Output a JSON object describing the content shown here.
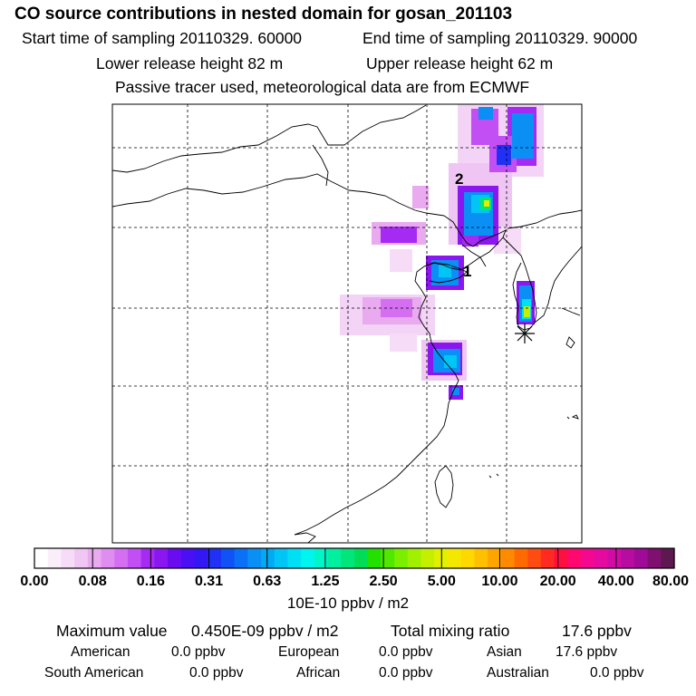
{
  "header": {
    "title": "CO  source contributions in nested domain for gosan_201103",
    "start_time": "Start time of sampling 20110329. 60000",
    "end_time": "End time of sampling 20110329. 90000",
    "lower_release": "Lower release height   82 m",
    "upper_release": "Upper release height   62 m",
    "tracer_info": "Passive tracer used, meteorological data are from ECMWF"
  },
  "chart_data": {
    "type": "heatmap",
    "title": "CO  source contributions in nested domain for gosan_201103",
    "grid": true,
    "grid_columns": 6,
    "grid_rows": 6,
    "markers": [
      {
        "label": "1",
        "kind": "number"
      },
      {
        "label": "2",
        "kind": "number"
      },
      {
        "label": "",
        "kind": "asterisk",
        "meaning": "receptor"
      }
    ],
    "colorbar": {
      "unit": "10E-10 ppbv / m2",
      "tick_labels": [
        "0.00",
        "0.08",
        "0.16",
        "0.31",
        "0.63",
        "1.25",
        "2.50",
        "5.00",
        "10.00",
        "20.00",
        "40.00",
        "80.00"
      ],
      "colors": [
        "#ffffff",
        "#fbeefb",
        "#f6dcf7",
        "#f0c6f3",
        "#e9aaf0",
        "#e08df0",
        "#d46ff2",
        "#c24ff3",
        "#a52bf3",
        "#8a16f0",
        "#6a0cf0",
        "#4a10f3",
        "#3418f3",
        "#2030f5",
        "#1052f5",
        "#0a70f5",
        "#0a8ff5",
        "#00aaf5",
        "#00c5f5",
        "#00e0f5",
        "#00f5ee",
        "#00f5c8",
        "#00f0a0",
        "#00e67a",
        "#00dc55",
        "#22e000",
        "#50e800",
        "#7aef00",
        "#a0f000",
        "#c4f000",
        "#e2f000",
        "#f5e800",
        "#ffd800",
        "#ffc000",
        "#ffa500",
        "#ff8a00",
        "#ff6a00",
        "#ff4c10",
        "#ff2a20",
        "#ff1040",
        "#ff0870",
        "#f50890",
        "#e50aa0",
        "#d00ca5",
        "#b80ca0",
        "#a00a98",
        "#801070",
        "#5e1850"
      ]
    },
    "values": {
      "maximum_value": "0.450E-09 ppbv / m2",
      "total_mixing_ratio": "17.6 ppbv",
      "american": "0.0 ppbv",
      "european": "0.0 ppbv",
      "asian": "17.6 ppbv",
      "south_american": "0.0 ppbv",
      "african": "0.0 ppbv",
      "australian": "0.0 ppbv"
    }
  },
  "labels": {
    "maximum_value": "Maximum value",
    "total_mixing_ratio": "Total mixing ratio",
    "american": "American",
    "european": "European",
    "asian": "Asian",
    "south_american": "South American",
    "african": "African",
    "australian": "Australian"
  },
  "colors": {
    "coastline": "#000000",
    "grid": "#000000",
    "background": "#ffffff"
  }
}
